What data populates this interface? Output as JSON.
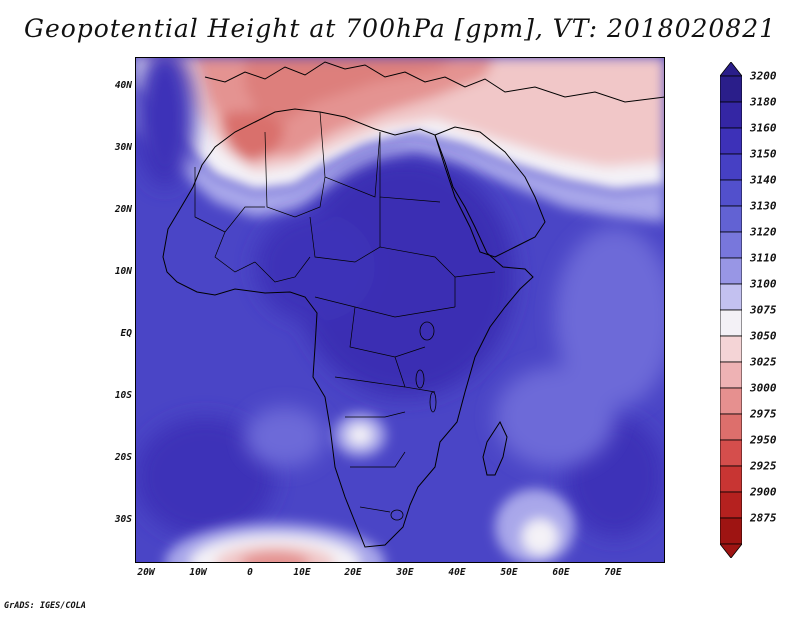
{
  "title": "Geopotential Height at 700hPa [gpm], VT: 2018020821",
  "credit": "GrADS: IGES/COLA",
  "lat_labels": [
    "40N",
    "30N",
    "20N",
    "10N",
    "EQ",
    "10S",
    "20S",
    "30S"
  ],
  "lon_labels": [
    "20W",
    "10W",
    "0",
    "10E",
    "20E",
    "30E",
    "40E",
    "50E",
    "60E",
    "70E"
  ],
  "colorbar": {
    "levels": [
      "3200",
      "3180",
      "3160",
      "3150",
      "3140",
      "3130",
      "3120",
      "3110",
      "3100",
      "3075",
      "3050",
      "3025",
      "3000",
      "2975",
      "2950",
      "2925",
      "2900",
      "2875"
    ],
    "colors": [
      "#2a1e8a",
      "#3426a4",
      "#3d31b8",
      "#4640c4",
      "#5250cc",
      "#6262d3",
      "#7877dc",
      "#9896e5",
      "#c3c1f0",
      "#f3f1f6",
      "#f4d4d6",
      "#eeb2b4",
      "#e6908f",
      "#dd6f6c",
      "#d54e4c",
      "#c83533",
      "#b5211f",
      "#9e1412"
    ]
  },
  "map": {
    "lon_range": [
      -22,
      80
    ],
    "lat_range": [
      -37,
      45
    ],
    "field_colors": {
      "deep": "#3a2eb3",
      "mid": "#4a45c6",
      "light": "#6d6ad8",
      "pale": "#a9a7ea",
      "white": "#f4f2f7",
      "pink": "#f1c7c8",
      "red": "#e49391",
      "deepred": "#d96f6c",
      "outline": "#000000"
    }
  }
}
